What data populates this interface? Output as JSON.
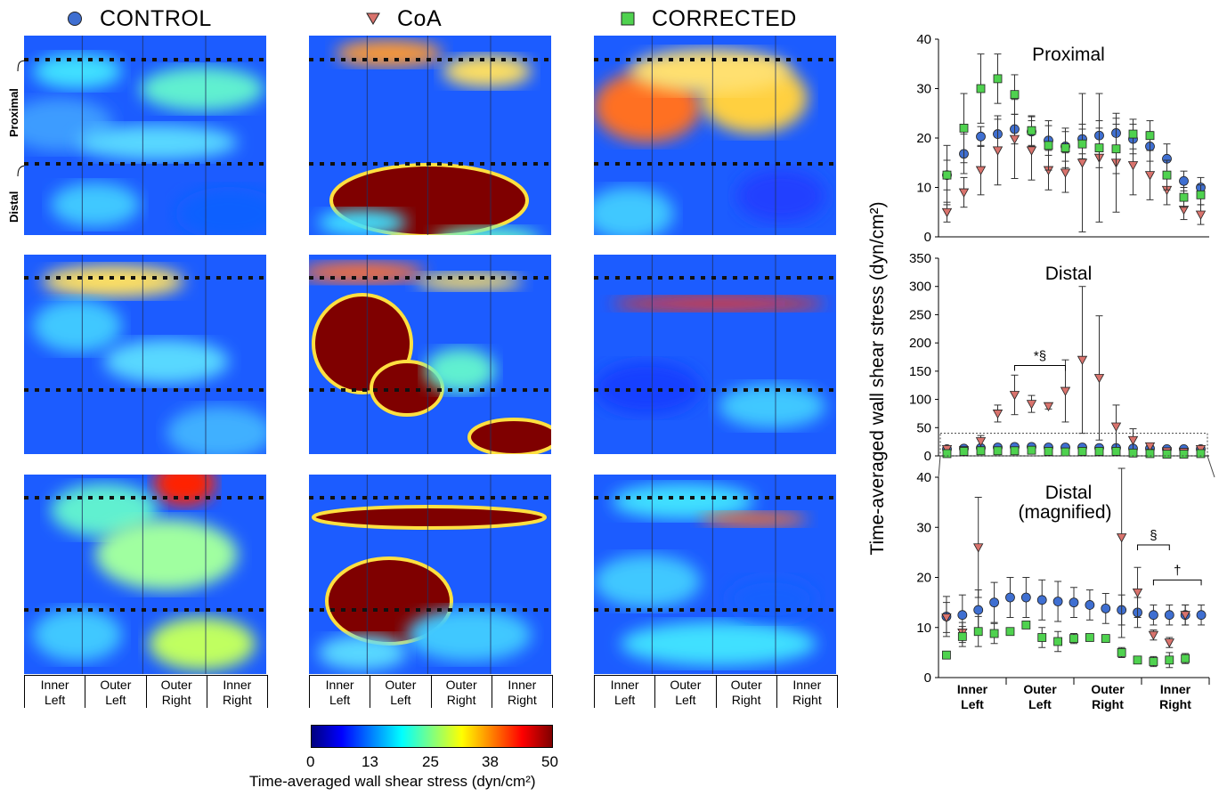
{
  "legend": {
    "control": "CONTROL",
    "coa": "CoA",
    "corrected": "CORRECTED"
  },
  "map_side_labels": {
    "proximal": "Proximal",
    "distal": "Distal"
  },
  "region_labels": [
    [
      "Inner",
      "Left"
    ],
    [
      "Outer",
      "Left"
    ],
    [
      "Outer",
      "Right"
    ],
    [
      "Inner",
      "Right"
    ]
  ],
  "colorbar": {
    "ticks": [
      "0",
      "13",
      "25",
      "38",
      "50"
    ],
    "label": "Time-averaged wall shear stress (dyn/cm²)",
    "colors": [
      "#00007f",
      "#0000ff",
      "#0080ff",
      "#00ffff",
      "#80ff80",
      "#ffff00",
      "#ff8000",
      "#ff0000",
      "#7f0000"
    ]
  },
  "chart_data": [
    {
      "type": "scatter",
      "title": "Proximal",
      "ylabel": "Time-averaged wall shear stress (dyn/cm²)",
      "ylim": [
        0,
        40
      ],
      "yticks": [
        "0",
        "10",
        "20",
        "30",
        "40"
      ],
      "n_points": 16,
      "series": [
        {
          "name": "CONTROL",
          "color": "#3f6fd1",
          "marker": "circle",
          "values": [
            12.5,
            16.8,
            20.3,
            20.8,
            21.8,
            21.3,
            19.5,
            18.3,
            19.8,
            20.5,
            21.0,
            19.8,
            18.3,
            15.8,
            11.3,
            10.0
          ],
          "err": [
            3,
            4,
            2,
            3,
            3,
            3,
            3,
            3,
            3,
            3,
            3,
            3,
            3,
            3,
            2,
            2
          ]
        },
        {
          "name": "CoA",
          "color": "#d9736d",
          "marker": "triangle-down",
          "values": [
            5.0,
            9.0,
            13.5,
            17.5,
            19.8,
            17.5,
            13.5,
            13.0,
            15.0,
            16.0,
            15.0,
            14.5,
            12.5,
            9.5,
            5.5,
            4.5
          ],
          "err": [
            2,
            3,
            5,
            7,
            8,
            6,
            4,
            4,
            14,
            13,
            10,
            6,
            5,
            3,
            2,
            2
          ]
        },
        {
          "name": "CORRECTED",
          "color": "#4fd24f",
          "marker": "square",
          "values": [
            12.5,
            22.0,
            30.0,
            32.0,
            28.8,
            21.5,
            18.5,
            18.0,
            18.8,
            18.0,
            17.8,
            20.8,
            20.5,
            12.5,
            8.0,
            8.5
          ],
          "err": [
            6,
            7,
            7,
            5,
            4,
            3,
            5,
            4,
            3,
            4,
            5,
            3,
            3,
            3,
            2,
            2
          ]
        }
      ]
    },
    {
      "type": "scatter",
      "title": "Distal",
      "ylim": [
        0,
        350
      ],
      "yticks": [
        "0",
        "50",
        "100",
        "150",
        "200",
        "250",
        "300",
        "350"
      ],
      "n_points": 16,
      "annotations": [
        {
          "text": "*§",
          "from": 4,
          "to": 7
        }
      ],
      "series": [
        {
          "name": "CONTROL",
          "color": "#3f6fd1",
          "marker": "circle",
          "values": [
            12,
            13,
            14,
            15,
            16,
            16,
            15,
            15,
            15,
            14,
            14,
            13,
            13,
            12,
            12,
            12
          ],
          "err": [
            4,
            4,
            4,
            4,
            4,
            4,
            4,
            4,
            3,
            3,
            3,
            3,
            3,
            3,
            3,
            3
          ]
        },
        {
          "name": "CoA",
          "color": "#d9736d",
          "marker": "triangle-down",
          "values": [
            12,
            10,
            26,
            75,
            108,
            92,
            88,
            115,
            170,
            138,
            52,
            28,
            17,
            8,
            7,
            12
          ],
          "err": [
            4,
            4,
            10,
            15,
            35,
            15,
            5,
            55,
            130,
            110,
            38,
            20,
            5,
            2,
            2,
            4
          ]
        },
        {
          "name": "CORRECTED",
          "color": "#4fd24f",
          "marker": "square",
          "values": [
            4,
            8,
            9,
            9,
            9,
            10,
            8,
            7,
            8,
            8,
            8,
            5,
            4,
            3,
            3,
            4
          ],
          "err": [
            1,
            2,
            3,
            2,
            1,
            1,
            2,
            2,
            1,
            1,
            1,
            1,
            1,
            1,
            1,
            1
          ]
        }
      ]
    },
    {
      "type": "scatter",
      "title": "Distal (magnified)",
      "ylim": [
        0,
        40
      ],
      "yticks": [
        "0",
        "10",
        "20",
        "30",
        "40"
      ],
      "n_points": 17,
      "xregions": [
        [
          "Inner",
          "Left"
        ],
        [
          "Outer",
          "Left"
        ],
        [
          "Outer",
          "Right"
        ],
        [
          "Inner",
          "Right"
        ]
      ],
      "annotations": [
        {
          "text": "§",
          "from": 12,
          "to": 14,
          "y": 26.5
        },
        {
          "text": "†",
          "from": 13,
          "to": 16,
          "y": 19.5
        }
      ],
      "series": [
        {
          "name": "CONTROL",
          "color": "#3f6fd1",
          "marker": "circle",
          "values": [
            12.2,
            12.5,
            13.5,
            15.0,
            16.0,
            16.0,
            15.5,
            15.2,
            15.0,
            14.5,
            13.8,
            13.5,
            13.0,
            12.5,
            12.5,
            12.5,
            12.5
          ],
          "err": [
            4,
            4,
            4,
            4,
            4,
            4,
            4,
            4,
            3,
            3,
            3,
            3,
            3,
            2,
            2,
            2,
            2
          ]
        },
        {
          "name": "CoA",
          "color": "#d9736d",
          "marker": "triangle-down",
          "values": [
            12.0,
            9.0,
            26.0,
            null,
            null,
            null,
            null,
            null,
            null,
            null,
            null,
            28.0,
            17.0,
            8.5,
            7.0,
            12.5,
            null
          ],
          "err": [
            3,
            2,
            10,
            0,
            0,
            0,
            0,
            0,
            0,
            0,
            0,
            20,
            5,
            1,
            1,
            2,
            0
          ]
        },
        {
          "name": "CORRECTED",
          "color": "#4fd24f",
          "marker": "square",
          "values": [
            4.5,
            8.2,
            9.2,
            8.8,
            9.2,
            10.5,
            8.0,
            7.2,
            7.8,
            8.0,
            7.8,
            5.0,
            3.5,
            3.2,
            3.5,
            3.8,
            null
          ],
          "err": [
            0.5,
            2,
            3,
            2,
            0.5,
            0.5,
            2,
            2,
            1,
            0.5,
            0.5,
            1,
            0.5,
            1,
            1.5,
            1,
            0
          ]
        }
      ]
    }
  ]
}
